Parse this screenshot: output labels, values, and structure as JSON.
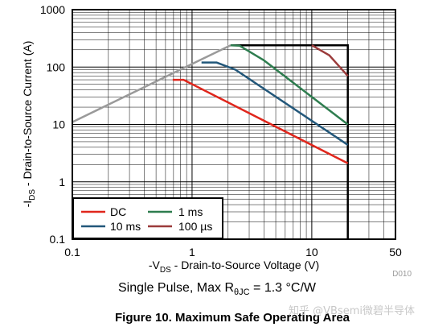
{
  "chart_data": {
    "type": "line",
    "x_scale": "log",
    "y_scale": "log",
    "xlim": [
      0.1,
      50
    ],
    "ylim": [
      0.1,
      1000
    ],
    "grid": true,
    "x_ticks": [
      {
        "v": 0.1,
        "label": "0.1"
      },
      {
        "v": 1,
        "label": "1"
      },
      {
        "v": 10,
        "label": "10"
      },
      {
        "v": 50,
        "label": "50"
      }
    ],
    "y_ticks": [
      {
        "v": 0.1,
        "label": "0.1"
      },
      {
        "v": 1,
        "label": "1"
      },
      {
        "v": 10,
        "label": "10"
      },
      {
        "v": 100,
        "label": "100"
      },
      {
        "v": 1000,
        "label": "1000"
      }
    ],
    "xlabel": {
      "prefix": "-V",
      "sub": "DS",
      "suffix": " - Drain-to-Source Voltage (V)"
    },
    "ylabel": {
      "prefix": "-I",
      "sub": "DS",
      "suffix": " - Drain-to-Source Current (A)"
    },
    "legend_position": "bottom-left",
    "series": [
      {
        "name": "DC",
        "color": "#e0261c",
        "points": [
          [
            0.69,
            60
          ],
          [
            0.85,
            60
          ],
          [
            20,
            2.1
          ]
        ]
      },
      {
        "name": "1 ms",
        "color": "#2e7d4f",
        "points": [
          [
            2.1,
            240
          ],
          [
            2.5,
            235
          ],
          [
            4,
            130
          ],
          [
            20,
            10
          ]
        ]
      },
      {
        "name": "10 ms",
        "color": "#22577a",
        "points": [
          [
            1.2,
            120
          ],
          [
            1.6,
            120
          ],
          [
            2.3,
            90
          ],
          [
            20,
            4.4
          ]
        ]
      },
      {
        "name": "100 µs",
        "color": "#9b3b3b",
        "points": [
          [
            10,
            240
          ],
          [
            14,
            160
          ],
          [
            20,
            70
          ]
        ]
      }
    ],
    "limit_curves": [
      {
        "color": "#9a9a9a",
        "points": [
          [
            0.1,
            11
          ],
          [
            2.1,
            240
          ]
        ]
      },
      {
        "color": "#000000",
        "points": [
          [
            2.1,
            240
          ],
          [
            20,
            240
          ],
          [
            20,
            0.1
          ]
        ]
      }
    ],
    "device_code": "D010"
  },
  "note": {
    "prefix": "Single Pulse, Max R",
    "sub": "θJC",
    "suffix": " = 1.3 °C/W"
  },
  "figure_title": "Figure 10. Maximum Safe Operating Area",
  "watermark": "知乎 @VBsemi微碧半导体"
}
